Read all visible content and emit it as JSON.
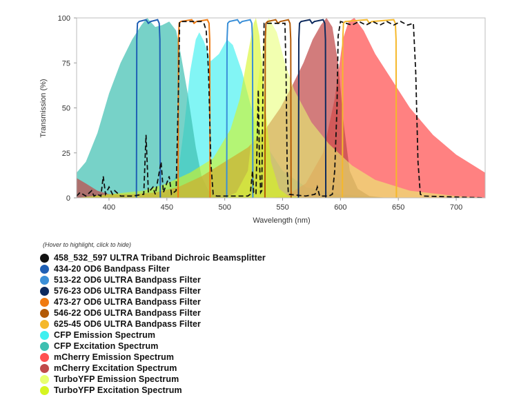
{
  "chart_data": {
    "type": "area",
    "title": "",
    "xlabel": "Wavelength (nm)",
    "ylabel": "Transmission (%)",
    "xlim": [
      372,
      725
    ],
    "ylim": [
      0,
      100
    ],
    "xticks": [
      400,
      450,
      500,
      550,
      600,
      650,
      700
    ],
    "yticks": [
      0,
      25,
      50,
      75,
      100
    ],
    "grid": false,
    "legend_position": "bottom-left",
    "legend_hint": "(Hover to highlight, click to hide)",
    "series": [
      {
        "name": "458_532_597 ULTRA Triband Dichroic Beamsplitter",
        "kind": "dichroic",
        "color": "#111111",
        "points": [
          [
            372,
            1
          ],
          [
            375,
            3
          ],
          [
            380,
            1
          ],
          [
            385,
            4
          ],
          [
            387,
            1
          ],
          [
            390,
            2
          ],
          [
            393,
            1
          ],
          [
            395,
            12
          ],
          [
            397,
            2
          ],
          [
            400,
            6
          ],
          [
            403,
            2
          ],
          [
            405,
            4
          ],
          [
            410,
            1
          ],
          [
            420,
            1
          ],
          [
            430,
            2
          ],
          [
            432,
            35
          ],
          [
            434,
            3
          ],
          [
            438,
            6
          ],
          [
            440,
            2
          ],
          [
            445,
            20
          ],
          [
            447,
            3
          ],
          [
            452,
            12
          ],
          [
            454,
            2
          ],
          [
            458,
            4
          ],
          [
            460,
            60
          ],
          [
            461,
            98
          ],
          [
            480,
            98
          ],
          [
            482,
            97
          ],
          [
            484,
            93
          ],
          [
            486,
            70
          ],
          [
            488,
            20
          ],
          [
            490,
            2
          ],
          [
            493,
            1
          ],
          [
            520,
            1
          ],
          [
            522,
            2
          ],
          [
            524,
            15
          ],
          [
            525,
            3
          ],
          [
            527,
            2
          ],
          [
            529,
            60
          ],
          [
            530,
            20
          ],
          [
            531,
            3
          ],
          [
            532,
            4
          ],
          [
            533,
            60
          ],
          [
            534,
            97
          ],
          [
            552,
            97
          ],
          [
            553,
            70
          ],
          [
            554,
            15
          ],
          [
            555,
            2
          ],
          [
            570,
            1
          ],
          [
            578,
            2
          ],
          [
            580,
            6
          ],
          [
            582,
            1
          ],
          [
            590,
            1
          ],
          [
            593,
            2
          ],
          [
            595,
            15
          ],
          [
            597,
            50
          ],
          [
            598,
            90
          ],
          [
            600,
            98
          ],
          [
            610,
            96
          ],
          [
            616,
            98
          ],
          [
            622,
            96
          ],
          [
            628,
            98
          ],
          [
            634,
            96
          ],
          [
            640,
            98
          ],
          [
            646,
            96
          ],
          [
            652,
            98
          ],
          [
            658,
            96
          ],
          [
            663,
            97
          ],
          [
            665,
            70
          ],
          [
            667,
            20
          ],
          [
            669,
            2
          ],
          [
            672,
            1
          ],
          [
            725,
            0
          ]
        ]
      },
      {
        "name": "434-20 OD6 Bandpass Filter",
        "kind": "filter",
        "color": "#1f5fb4",
        "range": [
          424,
          444
        ]
      },
      {
        "name": "513-22 OD6 ULTRA Bandpass Filter",
        "kind": "filter",
        "color": "#3a8fd8",
        "range": [
          502,
          524
        ]
      },
      {
        "name": "576-23 OD6 ULTRA Bandpass Filter",
        "kind": "filter",
        "color": "#0d2a5e",
        "range": [
          564,
          587
        ]
      },
      {
        "name": "473-27 OD6 ULTRA Bandpass Filter",
        "kind": "filter",
        "color": "#f07a10",
        "range": [
          460,
          487
        ]
      },
      {
        "name": "546-22 OD6 ULTRA Bandpass Filter",
        "kind": "filter",
        "color": "#b35a06",
        "range": [
          535,
          557
        ]
      },
      {
        "name": "625-45 OD6 ULTRA Bandpass Filter",
        "kind": "filter",
        "color": "#f5b82a",
        "range": [
          602,
          648
        ]
      },
      {
        "name": "CFP Emission Spectrum",
        "kind": "spectrum",
        "color": "#3ff0f0",
        "opacity": 0.65,
        "points": [
          [
            440,
            0
          ],
          [
            450,
            3
          ],
          [
            460,
            15
          ],
          [
            465,
            40
          ],
          [
            470,
            70
          ],
          [
            475,
            88
          ],
          [
            478,
            92
          ],
          [
            482,
            87
          ],
          [
            488,
            76
          ],
          [
            495,
            80
          ],
          [
            502,
            88
          ],
          [
            507,
            85
          ],
          [
            515,
            70
          ],
          [
            525,
            45
          ],
          [
            535,
            30
          ],
          [
            550,
            15
          ],
          [
            570,
            6
          ],
          [
            600,
            2
          ],
          [
            640,
            0
          ]
        ]
      },
      {
        "name": "CFP Excitation Spectrum",
        "kind": "spectrum",
        "color": "#3dbfb0",
        "opacity": 0.7,
        "points": [
          [
            372,
            14
          ],
          [
            380,
            20
          ],
          [
            390,
            36
          ],
          [
            400,
            58
          ],
          [
            410,
            75
          ],
          [
            420,
            88
          ],
          [
            428,
            96
          ],
          [
            433,
            100
          ],
          [
            440,
            95
          ],
          [
            446,
            96
          ],
          [
            452,
            98
          ],
          [
            458,
            93
          ],
          [
            462,
            80
          ],
          [
            468,
            58
          ],
          [
            475,
            28
          ],
          [
            480,
            12
          ],
          [
            486,
            4
          ],
          [
            495,
            1
          ],
          [
            510,
            0
          ]
        ]
      },
      {
        "name": "mCherry Emission Spectrum",
        "kind": "spectrum",
        "color": "#ff5050",
        "opacity": 0.72,
        "points": [
          [
            540,
            0
          ],
          [
            555,
            2
          ],
          [
            570,
            8
          ],
          [
            585,
            25
          ],
          [
            595,
            55
          ],
          [
            602,
            88
          ],
          [
            607,
            98
          ],
          [
            612,
            100
          ],
          [
            620,
            93
          ],
          [
            630,
            80
          ],
          [
            645,
            65
          ],
          [
            660,
            50
          ],
          [
            680,
            35
          ],
          [
            700,
            24
          ],
          [
            715,
            18
          ],
          [
            725,
            14
          ]
        ]
      },
      {
        "name": "mCherry Excitation Spectrum",
        "kind": "spectrum",
        "color": "#c04a4a",
        "opacity": 0.72,
        "points": [
          [
            372,
            11
          ],
          [
            380,
            8
          ],
          [
            390,
            4
          ],
          [
            400,
            2
          ],
          [
            420,
            2
          ],
          [
            440,
            3
          ],
          [
            460,
            6
          ],
          [
            480,
            12
          ],
          [
            500,
            20
          ],
          [
            520,
            28
          ],
          [
            535,
            38
          ],
          [
            548,
            50
          ],
          [
            558,
            62
          ],
          [
            568,
            75
          ],
          [
            576,
            88
          ],
          [
            583,
            96
          ],
          [
            588,
            100
          ],
          [
            593,
            95
          ],
          [
            598,
            75
          ],
          [
            603,
            40
          ],
          [
            608,
            15
          ],
          [
            615,
            5
          ],
          [
            625,
            1
          ],
          [
            640,
            0
          ]
        ]
      },
      {
        "name": "TurboYFP Emission Spectrum",
        "kind": "spectrum",
        "color": "#e8ff70",
        "opacity": 0.55,
        "points": [
          [
            500,
            0
          ],
          [
            510,
            3
          ],
          [
            520,
            15
          ],
          [
            527,
            55
          ],
          [
            533,
            85
          ],
          [
            538,
            100
          ],
          [
            545,
            92
          ],
          [
            552,
            75
          ],
          [
            560,
            60
          ],
          [
            575,
            42
          ],
          [
            590,
            30
          ],
          [
            610,
            18
          ],
          [
            630,
            10
          ],
          [
            660,
            4
          ],
          [
            700,
            1
          ],
          [
            725,
            0
          ]
        ]
      },
      {
        "name": "TurboYFP Excitation Spectrum",
        "kind": "spectrum",
        "color": "#d6f520",
        "opacity": 0.6,
        "points": [
          [
            372,
            0
          ],
          [
            400,
            2
          ],
          [
            430,
            4
          ],
          [
            450,
            8
          ],
          [
            470,
            14
          ],
          [
            490,
            22
          ],
          [
            505,
            38
          ],
          [
            513,
            55
          ],
          [
            520,
            80
          ],
          [
            525,
            97
          ],
          [
            527,
            100
          ],
          [
            530,
            90
          ],
          [
            535,
            50
          ],
          [
            540,
            20
          ],
          [
            547,
            5
          ],
          [
            555,
            1
          ],
          [
            570,
            0
          ]
        ]
      }
    ]
  }
}
